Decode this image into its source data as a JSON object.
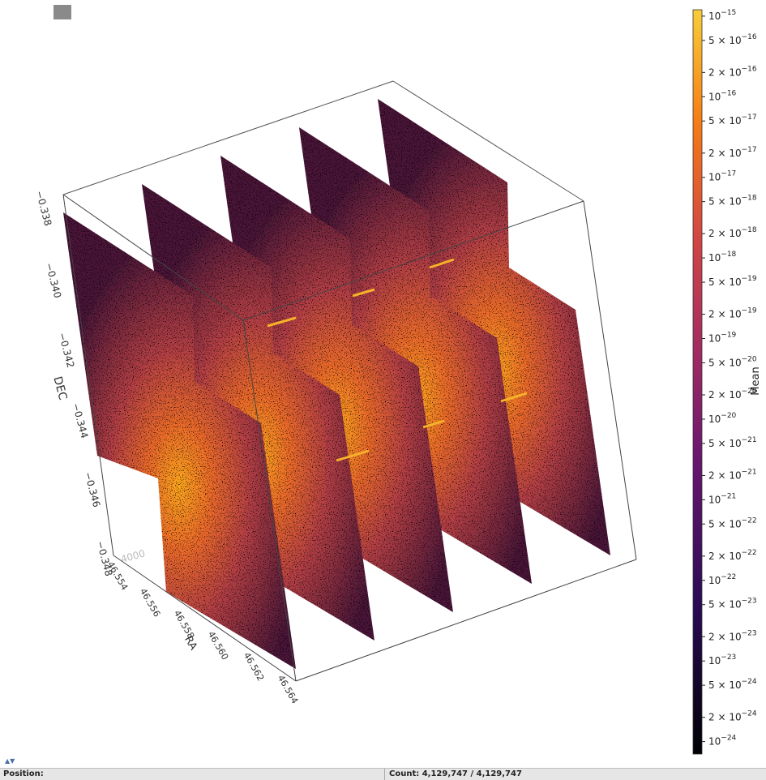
{
  "plot": {
    "dec_label": "DEC",
    "ra_label": "RA",
    "dec_ticks": [
      "−0.338",
      "−0.340",
      "−0.342",
      "−0.344",
      "−0.346",
      "−0.348"
    ],
    "ra_ticks": [
      "46.554",
      "46.556",
      "46.558",
      "46.560",
      "46.562",
      "46.564"
    ],
    "z_tick": "4000"
  },
  "colorbar": {
    "label": "Mean",
    "scale": "log",
    "range": [
      7e-25,
      1.2e-15
    ],
    "ticks": [
      {
        "value": 1e-15,
        "label": [
          "10",
          "−15"
        ]
      },
      {
        "value": 5e-16,
        "label": [
          "5 × 10",
          "−16"
        ]
      },
      {
        "value": 2e-16,
        "label": [
          "2 × 10",
          "−16"
        ]
      },
      {
        "value": 1e-16,
        "label": [
          "10",
          "−16"
        ]
      },
      {
        "value": 5e-17,
        "label": [
          "5 × 10",
          "−17"
        ]
      },
      {
        "value": 2e-17,
        "label": [
          "2 × 10",
          "−17"
        ]
      },
      {
        "value": 1e-17,
        "label": [
          "10",
          "−17"
        ]
      },
      {
        "value": 5e-18,
        "label": [
          "5 × 10",
          "−18"
        ]
      },
      {
        "value": 2e-18,
        "label": [
          "2 × 10",
          "−18"
        ]
      },
      {
        "value": 1e-18,
        "label": [
          "10",
          "−18"
        ]
      },
      {
        "value": 5e-19,
        "label": [
          "5 × 10",
          "−19"
        ]
      },
      {
        "value": 2e-19,
        "label": [
          "2 × 10",
          "−19"
        ]
      },
      {
        "value": 1e-19,
        "label": [
          "10",
          "−19"
        ]
      },
      {
        "value": 5e-20,
        "label": [
          "5 × 10",
          "−20"
        ]
      },
      {
        "value": 2e-20,
        "label": [
          "2 × 10",
          "−20"
        ]
      },
      {
        "value": 1e-20,
        "label": [
          "10",
          "−20"
        ]
      },
      {
        "value": 5e-21,
        "label": [
          "5 × 10",
          "−21"
        ]
      },
      {
        "value": 2e-21,
        "label": [
          "2 × 10",
          "−21"
        ]
      },
      {
        "value": 1e-21,
        "label": [
          "10",
          "−21"
        ]
      },
      {
        "value": 5e-22,
        "label": [
          "5 × 10",
          "−22"
        ]
      },
      {
        "value": 2e-22,
        "label": [
          "2 × 10",
          "−22"
        ]
      },
      {
        "value": 1e-22,
        "label": [
          "10",
          "−22"
        ]
      },
      {
        "value": 5e-23,
        "label": [
          "5 × 10",
          "−23"
        ]
      },
      {
        "value": 2e-23,
        "label": [
          "2 × 10",
          "−23"
        ]
      },
      {
        "value": 1e-23,
        "label": [
          "10",
          "−23"
        ]
      },
      {
        "value": 5e-24,
        "label": [
          "5 × 10",
          "−24"
        ]
      },
      {
        "value": 2e-24,
        "label": [
          "2 × 10",
          "−24"
        ]
      },
      {
        "value": 1e-24,
        "label": [
          "10",
          "−24"
        ]
      }
    ]
  },
  "status": {
    "position": "Position:",
    "count": "Count: 4,129,747 / 4,129,747"
  }
}
